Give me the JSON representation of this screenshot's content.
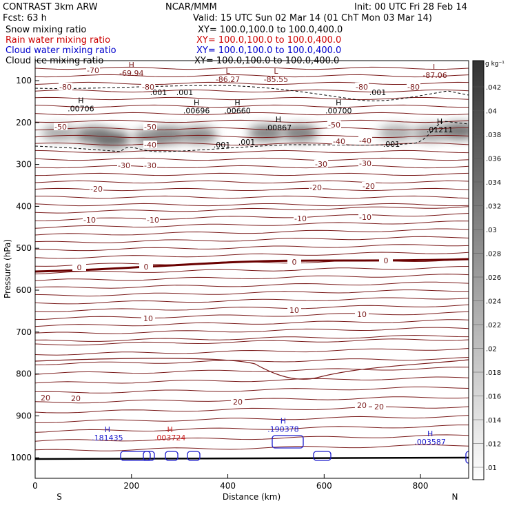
{
  "header": {
    "model": "CONTRAST  3km ARW",
    "org": "NCAR/MMM",
    "init": "Init: 00 UTC Fri 28 Feb 14",
    "fcst": "Fcst:   63 h",
    "valid": "Valid: 15 UTC Sun 02 Mar 14 (01 ChT Mon 03 Mar 14)",
    "fields": [
      {
        "name": "Snow mixing ratio",
        "xy": "XY= 100.0,100.0 to 100.0,400.0",
        "color": "#000000"
      },
      {
        "name": "Rain water mixing ratio",
        "xy": "XY= 100.0,100.0 to 100.0,400.0",
        "color": "#cc0000"
      },
      {
        "name": "Cloud water mixing ratio",
        "xy": "XY= 100.0,100.0 to 100.0,400.0",
        "color": "#0000cc"
      },
      {
        "name": "Cloud ice mixing ratio",
        "xy": "XY= 100.0,100.0 to 100.0,400.0",
        "color": "#000000"
      }
    ]
  },
  "chart_data": {
    "type": "cross-section",
    "xlabel": "Distance (km)",
    "ylabel": "Pressure (hPa)",
    "xlim": [
      0,
      900
    ],
    "ylim": [
      1050,
      50
    ],
    "xticks": [
      "0",
      "200",
      "400",
      "600",
      "800"
    ],
    "yticks": [
      "100",
      "200",
      "300",
      "400",
      "500",
      "600",
      "700",
      "800",
      "900",
      "1000"
    ],
    "end_labels": [
      "S",
      "N"
    ],
    "colorbar": {
      "unit": "g kg⁻¹",
      "ticks": [
        ".042",
        ".04",
        ".038",
        ".036",
        ".034",
        ".032",
        ".03",
        ".028",
        ".026",
        ".024",
        ".022",
        ".02",
        ".018",
        ".016",
        ".014",
        ".012",
        ".01"
      ]
    },
    "temperature_contour_labels": [
      "-80",
      "-70",
      "-50",
      "-40",
      "-30",
      "-20",
      "-10",
      "0",
      "10",
      "20"
    ],
    "extrema": [
      {
        "type": "H",
        "value": "-69.94",
        "x": 200,
        "p": 75
      },
      {
        "type": "L",
        "value": "-86.27",
        "x": 400,
        "p": 90
      },
      {
        "type": "L",
        "value": "-85.55",
        "x": 500,
        "p": 90
      },
      {
        "type": "L",
        "value": "-87.06",
        "x": 830,
        "p": 80
      },
      {
        "type": "H",
        "value": ".00706",
        "x": 95,
        "p": 160
      },
      {
        "type": "H",
        "value": ".00696",
        "x": 335,
        "p": 165
      },
      {
        "type": "H",
        "value": ".00660",
        "x": 420,
        "p": 165
      },
      {
        "type": "H",
        "value": ".00700",
        "x": 630,
        "p": 165
      },
      {
        "type": "H",
        "value": ".00867",
        "x": 505,
        "p": 205
      },
      {
        "type": "H",
        "value": ".01211",
        "x": 840,
        "p": 210
      },
      {
        "type": "H",
        "value": ".181435",
        "x": 150,
        "p": 945
      },
      {
        "type": "H",
        "value": ".190378",
        "x": 515,
        "p": 925
      },
      {
        "type": "H",
        "value": ".003587",
        "x": 820,
        "p": 955
      },
      {
        "type": "H",
        "value": ".003724",
        "x": 280,
        "p": 945
      }
    ],
    "snow_blobs": [
      {
        "x": 50,
        "p": 225,
        "intensity": 0.35
      },
      {
        "x": 120,
        "p": 230,
        "intensity": 0.75
      },
      {
        "x": 160,
        "p": 240,
        "intensity": 0.9
      },
      {
        "x": 240,
        "p": 235,
        "intensity": 0.6
      },
      {
        "x": 280,
        "p": 230,
        "intensity": 0.7
      },
      {
        "x": 340,
        "p": 230,
        "intensity": 0.65
      },
      {
        "x": 480,
        "p": 225,
        "intensity": 0.7
      },
      {
        "x": 550,
        "p": 225,
        "intensity": 0.75
      },
      {
        "x": 750,
        "p": 225,
        "intensity": 0.35
      },
      {
        "x": 820,
        "p": 225,
        "intensity": 0.45
      },
      {
        "x": 880,
        "p": 220,
        "intensity": 0.85
      }
    ]
  }
}
